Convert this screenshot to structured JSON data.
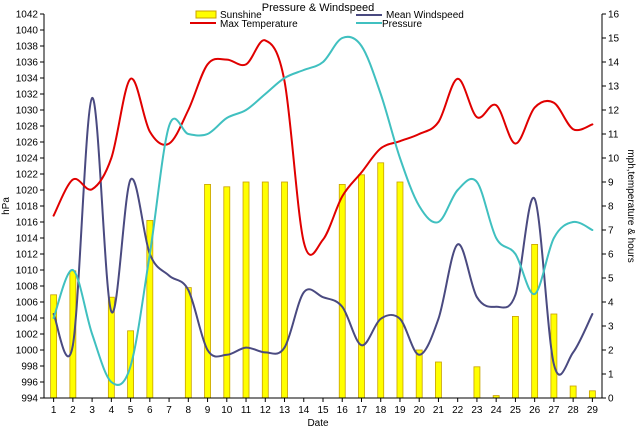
{
  "chart_data": {
    "type": "bar+line",
    "title": "Pressure & Windspeed",
    "xlabel": "Date",
    "ylabel_left": "hPa",
    "ylabel_right": "mph,temperature & hours",
    "ylim_left": [
      994,
      1042
    ],
    "ylim_right": [
      0,
      16
    ],
    "yticks_left": [
      "994",
      "996",
      "998",
      "1000",
      "1002",
      "1004",
      "1006",
      "1008",
      "1010",
      "1012",
      "1014",
      "1016",
      "1018",
      "1020",
      "1022",
      "1024",
      "1026",
      "1028",
      "1030",
      "1032",
      "1034",
      "1036",
      "1038",
      "1040",
      "1042"
    ],
    "yticks_right": [
      "0",
      "1",
      "2",
      "3",
      "4",
      "5",
      "6",
      "7",
      "8",
      "9",
      "10",
      "11",
      "12",
      "13",
      "14",
      "15",
      "16"
    ],
    "categories": [
      "1",
      "2",
      "3",
      "4",
      "5",
      "6",
      "7",
      "8",
      "9",
      "10",
      "11",
      "12",
      "13",
      "14",
      "15",
      "16",
      "17",
      "18",
      "19",
      "20",
      "21",
      "22",
      "23",
      "24",
      "25",
      "26",
      "27",
      "28",
      "29"
    ],
    "legend": {
      "sunshine": "Sunshine",
      "wind": "Mean Windspeed",
      "temp": "Max Temperature",
      "pressure": "Pressure"
    },
    "series": [
      {
        "name": "Sunshine",
        "type": "bar",
        "axis": "right",
        "color": "#ffff00",
        "edge": "#c8a000",
        "values": [
          4.3,
          5.3,
          0,
          4.2,
          2.8,
          7.4,
          0,
          4.6,
          8.9,
          8.8,
          9.0,
          9.0,
          9.0,
          0,
          0,
          8.9,
          9.3,
          9.8,
          9.0,
          2.0,
          1.5,
          0,
          1.3,
          0.1,
          3.4,
          6.4,
          3.5,
          0.5,
          0.3
        ]
      },
      {
        "name": "Mean Windspeed",
        "type": "line",
        "axis": "right",
        "color": "#4a4a80",
        "values": [
          3.5,
          2.2,
          12.5,
          3.6,
          9.1,
          6.0,
          5.1,
          4.5,
          2.0,
          1.8,
          2.1,
          1.9,
          2.1,
          4.4,
          4.2,
          3.8,
          2.2,
          3.3,
          3.3,
          1.8,
          3.3,
          6.4,
          4.2,
          3.8,
          4.3,
          8.3,
          1.4,
          1.9,
          3.5
        ]
      },
      {
        "name": "Max Temperature",
        "type": "line",
        "axis": "right",
        "color": "#e00000",
        "values": [
          7.6,
          9.1,
          8.7,
          10.0,
          13.3,
          11.1,
          10.6,
          12.0,
          13.9,
          14.1,
          13.9,
          14.9,
          13.2,
          6.5,
          6.6,
          8.4,
          9.4,
          10.4,
          10.7,
          11.0,
          11.5,
          13.3,
          11.7,
          12.2,
          10.6,
          12.1,
          12.3,
          11.2,
          11.4
        ]
      },
      {
        "name": "Pressure",
        "type": "line",
        "axis": "left",
        "color": "#40c0c0",
        "values": [
          1004,
          1010,
          1002,
          996,
          998,
          1012,
          1028,
          1027,
          1027,
          1029,
          1030,
          1032,
          1034,
          1035,
          1036,
          1039,
          1038,
          1032,
          1024,
          1018,
          1016,
          1020,
          1021,
          1014,
          1012,
          1007,
          1014,
          1016,
          1015
        ]
      }
    ],
    "grid": false,
    "legend_position": "top"
  }
}
